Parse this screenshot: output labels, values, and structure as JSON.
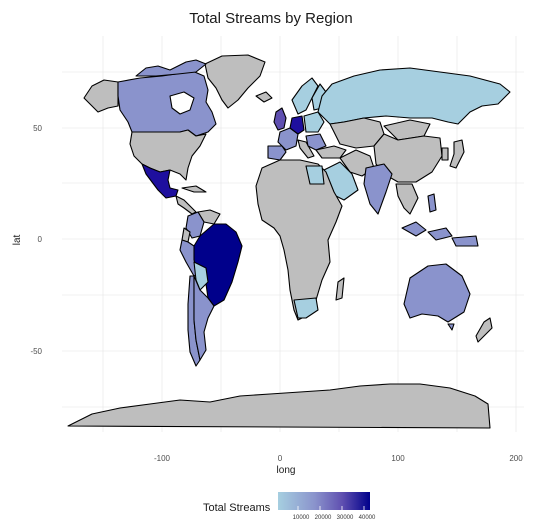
{
  "title": "Total Streams by Region",
  "xlabel": "long",
  "ylabel": "lat",
  "x_ticks": [
    "-100",
    "0",
    "100",
    "200"
  ],
  "y_ticks": [
    "50",
    "0",
    "-50"
  ],
  "legend": {
    "title": "Total Streams",
    "ticks": [
      "10000",
      "20000",
      "30000",
      "40000"
    ],
    "colors": [
      "#a6cfe0",
      "#8a93cc",
      "#5f4fb0",
      "#1e0f9e",
      "#00008b"
    ]
  },
  "colors": {
    "no_data": "#bebebe",
    "border": "#000000",
    "grid": "#ebebeb",
    "background": "#ffffff"
  },
  "chart_data": {
    "type": "choropleth",
    "title": "Total Streams by Region",
    "xlabel": "long",
    "ylabel": "lat",
    "xlim": [
      -180,
      200
    ],
    "ylim": [
      -90,
      85
    ],
    "legend_range": [
      0,
      43000
    ],
    "regions": [
      {
        "name": "Brazil",
        "value": 43000
      },
      {
        "name": "Mexico",
        "value": 33000
      },
      {
        "name": "Argentina",
        "value": 15000
      },
      {
        "name": "Canada",
        "value": 15000
      },
      {
        "name": "Australia",
        "value": 15000
      },
      {
        "name": "Colombia",
        "value": 13000
      },
      {
        "name": "Peru",
        "value": 13000
      },
      {
        "name": "Chile",
        "value": 15000
      },
      {
        "name": "India",
        "value": 15000
      },
      {
        "name": "Indonesia",
        "value": 15000
      },
      {
        "name": "Russia",
        "value": 5000
      },
      {
        "name": "United Kingdom",
        "value": 25000
      },
      {
        "name": "Germany",
        "value": 25000
      },
      {
        "name": "France",
        "value": 10000
      },
      {
        "name": "Spain",
        "value": 15000
      },
      {
        "name": "South Africa",
        "value": 5000
      },
      {
        "name": "Saudi Arabia",
        "value": 5000
      }
    ]
  }
}
